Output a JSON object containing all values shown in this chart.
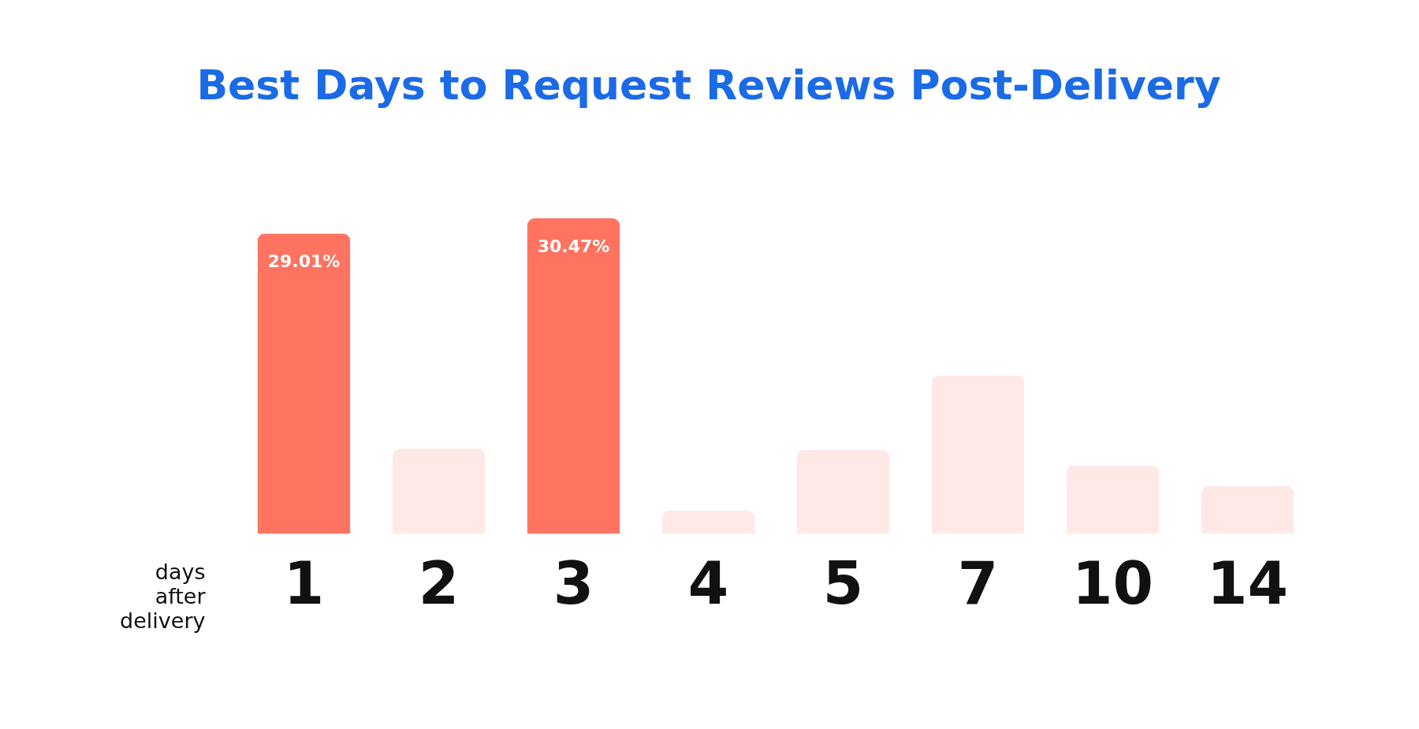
{
  "chart_data": {
    "type": "bar",
    "title": "Best Days to Request Reviews Post-Delivery",
    "xlabel": "days after delivery",
    "categories": [
      "1",
      "2",
      "3",
      "4",
      "5",
      "7",
      "10",
      "14"
    ],
    "values": [
      29.01,
      8.2,
      30.47,
      2.2,
      8.1,
      15.3,
      6.6,
      4.6
    ],
    "colors": [
      "#ff7360",
      "#ffe9e6",
      "#ff7360",
      "#ffe9e6",
      "#ffe9e6",
      "#ffe9e6",
      "#ffe9e6",
      "#ffe9e6"
    ],
    "value_labels": [
      "29.01%",
      null,
      "30.47%",
      null,
      null,
      null,
      null,
      null
    ],
    "tick_labels": "x"
  }
}
